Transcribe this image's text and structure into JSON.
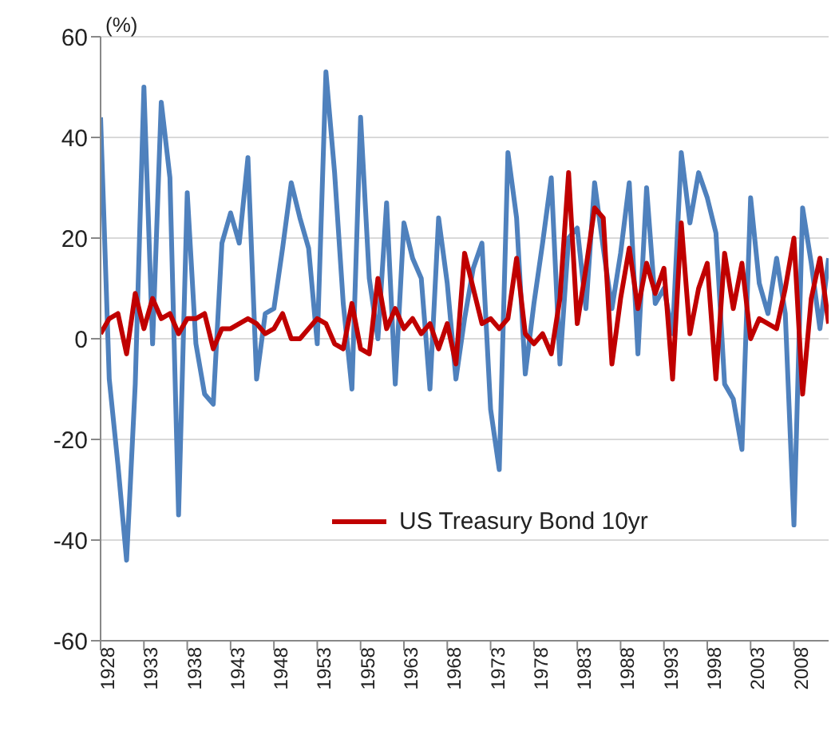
{
  "chart_data": {
    "type": "line",
    "ylabel": "(%)",
    "x": [
      1928,
      1929,
      1930,
      1931,
      1932,
      1933,
      1934,
      1935,
      1936,
      1937,
      1938,
      1939,
      1940,
      1941,
      1942,
      1943,
      1944,
      1945,
      1946,
      1947,
      1948,
      1949,
      1950,
      1951,
      1952,
      1953,
      1954,
      1955,
      1956,
      1957,
      1958,
      1959,
      1960,
      1961,
      1962,
      1963,
      1964,
      1965,
      1966,
      1967,
      1968,
      1969,
      1970,
      1971,
      1972,
      1973,
      1974,
      1975,
      1976,
      1977,
      1978,
      1979,
      1980,
      1981,
      1982,
      1983,
      1984,
      1985,
      1986,
      1987,
      1988,
      1989,
      1990,
      1991,
      1992,
      1993,
      1994,
      1995,
      1996,
      1997,
      1998,
      1999,
      2000,
      2001,
      2002,
      2003,
      2004,
      2005,
      2006,
      2007,
      2008,
      2009,
      2010,
      2011,
      2012
    ],
    "series": [
      {
        "color": "#4f81bd",
        "values": [
          44,
          -8,
          -25,
          -44,
          -9,
          50,
          -1,
          47,
          32,
          -35,
          29,
          -1,
          -11,
          -13,
          19,
          25,
          19,
          36,
          -8,
          5,
          6,
          18,
          31,
          24,
          18,
          -1,
          53,
          33,
          7,
          -10,
          44,
          12,
          0,
          27,
          -9,
          23,
          16,
          12,
          -10,
          24,
          11,
          -8,
          4,
          14,
          19,
          -14,
          -26,
          37,
          24,
          -7,
          7,
          19,
          32,
          -5,
          20,
          22,
          6,
          31,
          18,
          6,
          17,
          31,
          -3,
          30,
          7,
          10,
          1,
          37,
          23,
          33,
          28,
          21,
          -9,
          -12,
          -22,
          28,
          11,
          5,
          16,
          5,
          -37,
          26,
          15,
          2,
          16
        ]
      },
      {
        "name": "US Treasury Bond 10yr",
        "color": "#c00000",
        "values": [
          1,
          4,
          5,
          -3,
          9,
          2,
          8,
          4,
          5,
          1,
          4,
          4,
          5,
          -2,
          2,
          2,
          3,
          4,
          3,
          1,
          2,
          5,
          0,
          0,
          2,
          4,
          3,
          -1,
          -2,
          7,
          -2,
          -3,
          12,
          2,
          6,
          2,
          4,
          1,
          3,
          -2,
          3,
          -5,
          17,
          10,
          3,
          4,
          2,
          4,
          16,
          1,
          -1,
          1,
          -3,
          8,
          33,
          3,
          14,
          26,
          24,
          -5,
          8,
          18,
          6,
          15,
          9,
          14,
          -8,
          23,
          1,
          10,
          15,
          -8,
          17,
          6,
          15,
          0,
          4,
          3,
          2,
          10,
          20,
          -11,
          8,
          16,
          3
        ]
      }
    ],
    "xlim": [
      1928,
      2012
    ],
    "xticks": [
      1928,
      1933,
      1938,
      1943,
      1948,
      1953,
      1958,
      1963,
      1968,
      1973,
      1978,
      1983,
      1988,
      1993,
      1998,
      2003,
      2008
    ],
    "ylim": [
      -60,
      60
    ],
    "yticks": [
      -60,
      -40,
      -20,
      0,
      20,
      40,
      60
    ],
    "grid": "y",
    "legend": "bottom",
    "marker": "none",
    "line_style": "solid"
  }
}
